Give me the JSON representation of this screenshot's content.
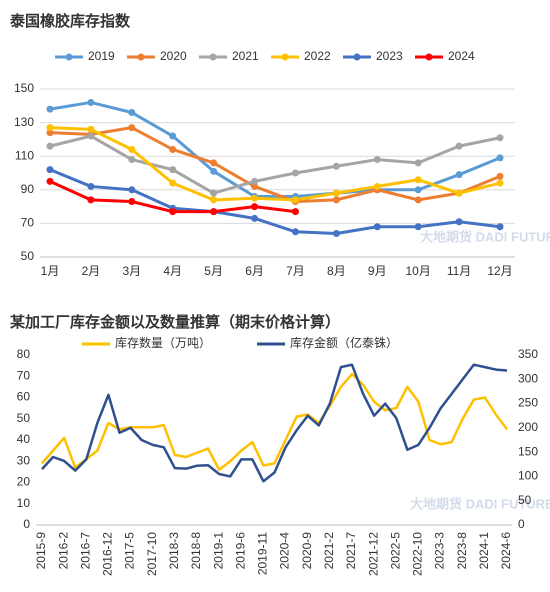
{
  "chart_data": [
    {
      "type": "line",
      "title": "泰国橡胶库存指数",
      "watermark": "大地期货 DADI FUTURES",
      "categories": [
        "1月",
        "2月",
        "3月",
        "4月",
        "5月",
        "6月",
        "7月",
        "8月",
        "9月",
        "10月",
        "11月",
        "12月"
      ],
      "ylim": [
        50,
        150
      ],
      "yticks": [
        50,
        70,
        90,
        110,
        130,
        150
      ],
      "grid": true,
      "legend": "top",
      "series": [
        {
          "name": "2019",
          "color": "#5b9bd5",
          "values": [
            138,
            142,
            136,
            122,
            101,
            86,
            86,
            88,
            90,
            90,
            99,
            109
          ]
        },
        {
          "name": "2020",
          "color": "#ed7d31",
          "values": [
            124,
            123,
            127,
            114,
            106,
            92,
            83,
            84,
            90,
            84,
            88,
            98
          ]
        },
        {
          "name": "2021",
          "color": "#a5a5a5",
          "values": [
            116,
            122,
            108,
            102,
            88,
            95,
            100,
            104,
            108,
            106,
            116,
            121
          ]
        },
        {
          "name": "2022",
          "color": "#ffc000",
          "values": [
            127,
            126,
            114,
            94,
            84,
            85,
            84,
            88,
            92,
            96,
            88,
            94
          ]
        },
        {
          "name": "2023",
          "color": "#4472c4",
          "values": [
            102,
            92,
            90,
            79,
            77,
            73,
            65,
            64,
            68,
            68,
            71,
            68
          ]
        },
        {
          "name": "2024",
          "color": "#ff0000",
          "values": [
            95,
            84,
            83,
            77,
            77,
            80,
            77,
            null,
            null,
            null,
            null,
            null
          ]
        }
      ]
    },
    {
      "type": "line",
      "title": "某加工厂库存金额以及数量推算（期末价格计算）",
      "watermark": "大地期货 DADI FUTURES",
      "categories": [
        "2015-9",
        null,
        "2016-2",
        null,
        "2016-7",
        null,
        "2016-12",
        null,
        "2017-5",
        null,
        "2017-10",
        null,
        "2018-3",
        null,
        "2018-8",
        null,
        "2019-1",
        null,
        "2019-6",
        null,
        "2019-11",
        null,
        "2020-4",
        null,
        "2020-9",
        null,
        "2021-2",
        null,
        "2021-7",
        null,
        "2021-12",
        null,
        "2022-5",
        null,
        "2022-10",
        null,
        "2023-3",
        null,
        "2023-8",
        null,
        "2024-1",
        null,
        "2024-6"
      ],
      "ylim": [
        0,
        80
      ],
      "yticks": [
        0,
        10,
        20,
        30,
        40,
        50,
        60,
        70,
        80
      ],
      "y2lim": [
        0,
        350
      ],
      "y2ticks": [
        0,
        50,
        100,
        150,
        200,
        250,
        300,
        350
      ],
      "grid": false,
      "legend": "top",
      "series": [
        {
          "name": "库存数量（万吨）",
          "color": "#ffc000",
          "values": [
            29,
            35,
            41,
            27,
            31,
            35,
            48,
            45,
            46,
            46,
            46,
            47,
            33,
            32,
            34,
            36,
            26,
            30,
            35,
            39,
            28,
            29,
            40,
            51,
            52,
            48,
            56,
            65,
            71,
            66,
            58,
            54,
            55,
            65,
            58,
            40,
            38,
            39,
            50,
            59,
            60,
            52,
            45
          ]
        },
        {
          "name": "库存金额（亿泰铢）",
          "color": "#2f4f8f",
          "axis": "y2",
          "values": [
            115,
            140,
            132,
            112,
            135,
            210,
            268,
            190,
            200,
            175,
            165,
            160,
            117,
            116,
            122,
            123,
            105,
            100,
            135,
            135,
            90,
            108,
            160,
            195,
            225,
            205,
            250,
            325,
            330,
            270,
            225,
            250,
            220,
            155,
            165,
            200,
            240,
            270,
            300,
            330,
            325,
            320,
            318
          ]
        }
      ]
    }
  ]
}
